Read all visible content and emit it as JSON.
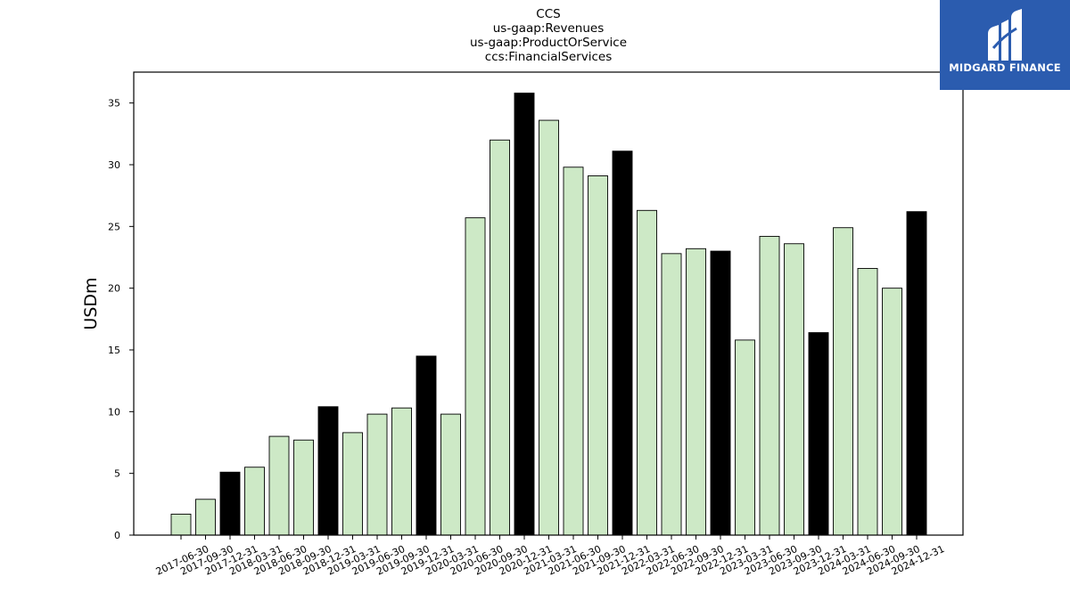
{
  "chart_data": {
    "type": "bar",
    "title_lines": [
      "CCS",
      "us-gaap:Revenues",
      "us-gaap:ProductOrService",
      "ccs:FinancialServices"
    ],
    "xlabel": "",
    "ylabel": "USDm",
    "ylim": [
      0,
      37.5
    ],
    "yticks": [
      0,
      5,
      10,
      15,
      20,
      25,
      30,
      35
    ],
    "grid": false,
    "categories": [
      "2017-06-30",
      "2017-09-30",
      "2017-12-31",
      "2018-03-31",
      "2018-06-30",
      "2018-09-30",
      "2018-12-31",
      "2019-03-31",
      "2019-06-30",
      "2019-09-30",
      "2019-12-31",
      "2020-03-31",
      "2020-06-30",
      "2020-09-30",
      "2020-12-31",
      "2021-03-31",
      "2021-06-30",
      "2021-09-30",
      "2021-12-31",
      "2022-03-31",
      "2022-06-30",
      "2022-09-30",
      "2022-12-31",
      "2023-03-31",
      "2023-06-30",
      "2023-09-30",
      "2023-12-31",
      "2024-03-31",
      "2024-06-30",
      "2024-09-30",
      "2024-12-31"
    ],
    "values": [
      1.7,
      2.9,
      5.1,
      5.5,
      8.0,
      7.7,
      10.4,
      8.3,
      9.8,
      10.3,
      14.5,
      9.8,
      25.7,
      32.0,
      35.8,
      33.6,
      29.8,
      29.1,
      31.1,
      26.3,
      22.8,
      23.2,
      23.0,
      15.8,
      24.2,
      23.6,
      16.4,
      24.9,
      21.6,
      20.0,
      26.2
    ],
    "bar_colors": {
      "quarter": "#cde9c6",
      "year_end": "#000000",
      "edge": "#000000"
    }
  },
  "logo": {
    "text": "MIDGARD FINANCE",
    "background": "#2b5caf"
  }
}
